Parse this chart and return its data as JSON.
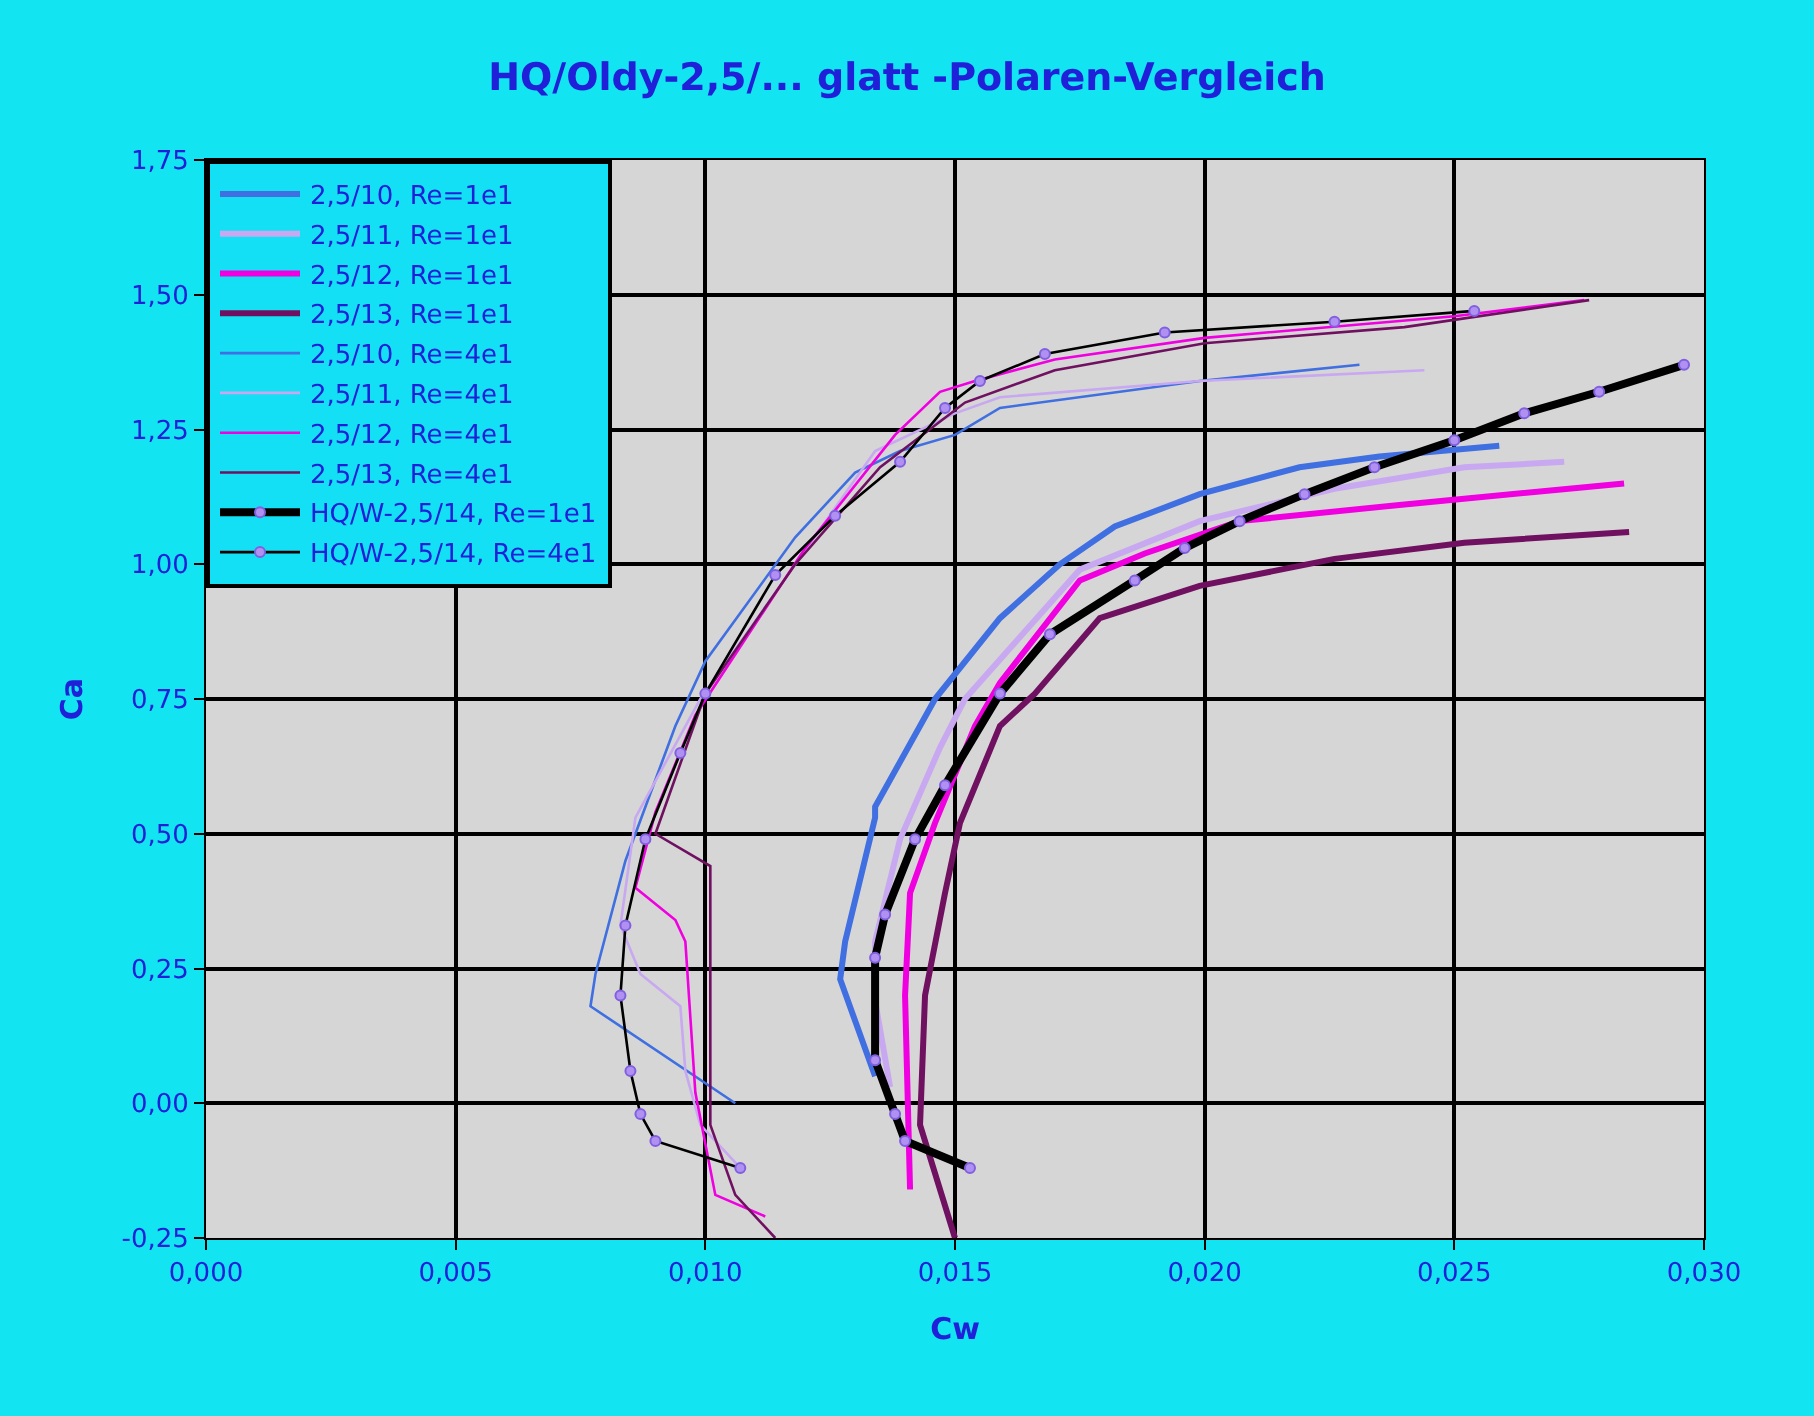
{
  "chart_data": {
    "type": "line",
    "title": "HQ/Oldy-2,5/... glatt -Polaren-Vergleich",
    "xlabel": "Cw",
    "ylabel": "Ca",
    "xlim": [
      0,
      0.03
    ],
    "ylim": [
      -0.25,
      1.75
    ],
    "xticks": [
      {
        "value": 0,
        "label": "0,000"
      },
      {
        "value": 0.005,
        "label": "0,005"
      },
      {
        "value": 0.01,
        "label": "0,010"
      },
      {
        "value": 0.015,
        "label": "0,015"
      },
      {
        "value": 0.02,
        "label": "0,020"
      },
      {
        "value": 0.025,
        "label": "0,025"
      },
      {
        "value": 0.03,
        "label": "0,030"
      }
    ],
    "yticks": [
      {
        "value": -0.25,
        "label": "-0,25"
      },
      {
        "value": 0,
        "label": "0,00"
      },
      {
        "value": 0.25,
        "label": "0,25"
      },
      {
        "value": 0.5,
        "label": "0,50"
      },
      {
        "value": 0.75,
        "label": "0,75"
      },
      {
        "value": 1.0,
        "label": "1,00"
      },
      {
        "value": 1.25,
        "label": "1,25"
      },
      {
        "value": 1.5,
        "label": "1,50"
      },
      {
        "value": 1.75,
        "label": "1,75"
      }
    ],
    "grid": true,
    "legend": "top left",
    "line_style": "solid",
    "series": [
      {
        "name": "2,5/10, Re=1e1",
        "color": "#3f6fe0",
        "marker": "none",
        "x": [
          0.0134,
          0.0127,
          0.0128,
          0.0134,
          0.0134,
          0.0146,
          0.0159,
          0.0171,
          0.0182,
          0.0199,
          0.0219,
          0.0235,
          0.0259
        ],
        "values": [
          0.05,
          0.23,
          0.3,
          0.53,
          0.55,
          0.75,
          0.9,
          1.0,
          1.07,
          1.13,
          1.18,
          1.2,
          1.22
        ]
      },
      {
        "name": "2,5/11, Re=1e1",
        "color": "#c8a8f0",
        "marker": "none",
        "x": [
          0.0137,
          0.0134,
          0.0134,
          0.0139,
          0.0147,
          0.0152,
          0.0175,
          0.0199,
          0.0226,
          0.0252,
          0.0272
        ],
        "values": [
          0.03,
          0.19,
          0.3,
          0.49,
          0.66,
          0.75,
          0.99,
          1.08,
          1.14,
          1.18,
          1.19
        ]
      },
      {
        "name": "2,5/12, Re=1e1",
        "color": "#f000e0",
        "marker": "none",
        "x": [
          0.0141,
          0.014,
          0.0141,
          0.0146,
          0.0154,
          0.0159,
          0.0175,
          0.0188,
          0.0207,
          0.0239,
          0.0284
        ],
        "values": [
          -0.16,
          0.2,
          0.39,
          0.52,
          0.7,
          0.78,
          0.97,
          1.02,
          1.08,
          1.11,
          1.15
        ]
      },
      {
        "name": "2,5/13, Re=1e1",
        "color": "#701060",
        "marker": "none",
        "x": [
          0.015,
          0.0143,
          0.0144,
          0.0148,
          0.0151,
          0.0159,
          0.0166,
          0.0179,
          0.0199,
          0.0226,
          0.0252,
          0.0285
        ],
        "values": [
          -0.25,
          -0.04,
          0.2,
          0.39,
          0.52,
          0.7,
          0.76,
          0.9,
          0.96,
          1.01,
          1.04,
          1.06
        ]
      },
      {
        "name": "2,5/10, Re=4e1",
        "color": "#3f6fe0",
        "marker": "none",
        "x": [
          0.0106,
          0.0077,
          0.0078,
          0.0084,
          0.0094,
          0.01,
          0.0118,
          0.013,
          0.0139,
          0.015,
          0.0159,
          0.0199,
          0.0231
        ],
        "values": [
          0.0,
          0.18,
          0.24,
          0.45,
          0.7,
          0.82,
          1.05,
          1.17,
          1.21,
          1.24,
          1.29,
          1.34,
          1.37
        ]
      },
      {
        "name": "2,5/11, Re=4e1",
        "color": "#c8a8f0",
        "marker": "none",
        "x": [
          0.0107,
          0.0099,
          0.0096,
          0.0095,
          0.0087,
          0.0083,
          0.0086,
          0.0099,
          0.0134,
          0.015,
          0.0159,
          0.0199,
          0.0244
        ],
        "values": [
          -0.12,
          -0.04,
          0.06,
          0.18,
          0.24,
          0.33,
          0.53,
          0.75,
          1.21,
          1.28,
          1.31,
          1.34,
          1.36
        ]
      },
      {
        "name": "2,5/12, Re=4e1",
        "color": "#f000e0",
        "marker": "none",
        "x": [
          0.0112,
          0.0102,
          0.0098,
          0.0096,
          0.0094,
          0.0086,
          0.009,
          0.0098,
          0.012,
          0.0138,
          0.0147,
          0.0154,
          0.017,
          0.02,
          0.025,
          0.0276
        ],
        "values": [
          -0.21,
          -0.17,
          0.02,
          0.3,
          0.34,
          0.4,
          0.54,
          0.72,
          1.03,
          1.24,
          1.32,
          1.34,
          1.38,
          1.42,
          1.46,
          1.49
        ]
      },
      {
        "name": "2,5/13, Re=4e1",
        "color": "#701060",
        "marker": "none",
        "x": [
          0.0114,
          0.0106,
          0.0101,
          0.0101,
          0.009,
          0.01,
          0.0118,
          0.0135,
          0.0152,
          0.017,
          0.02,
          0.024,
          0.0277
        ],
        "values": [
          -0.25,
          -0.17,
          -0.04,
          0.44,
          0.5,
          0.76,
          1.0,
          1.18,
          1.3,
          1.36,
          1.41,
          1.44,
          1.49
        ]
      },
      {
        "name": "HQ/W-2,5/14, Re=1e1",
        "color": "#000000",
        "marker": "circle",
        "x": [
          0.0153,
          0.014,
          0.0138,
          0.0134,
          0.0134,
          0.0136,
          0.0142,
          0.0148,
          0.0159,
          0.0169,
          0.0186,
          0.0196,
          0.0207,
          0.022,
          0.0234,
          0.025,
          0.0264,
          0.0279,
          0.0296
        ],
        "values": [
          -0.12,
          -0.07,
          -0.02,
          0.08,
          0.27,
          0.35,
          0.49,
          0.59,
          0.76,
          0.87,
          0.97,
          1.03,
          1.08,
          1.13,
          1.18,
          1.23,
          1.28,
          1.32,
          1.37
        ]
      },
      {
        "name": "HQ/W-2,5/14, Re=4e1",
        "color": "#000000",
        "marker": "circle",
        "x": [
          0.0107,
          0.009,
          0.0087,
          0.0085,
          0.0083,
          0.0084,
          0.0088,
          0.0095,
          0.01,
          0.0114,
          0.0126,
          0.0139,
          0.0148,
          0.0155,
          0.0168,
          0.0192,
          0.0226,
          0.0254
        ],
        "values": [
          -0.12,
          -0.07,
          -0.02,
          0.06,
          0.2,
          0.33,
          0.49,
          0.65,
          0.76,
          0.98,
          1.09,
          1.19,
          1.29,
          1.34,
          1.39,
          1.43,
          1.45,
          1.47
        ]
      }
    ]
  }
}
